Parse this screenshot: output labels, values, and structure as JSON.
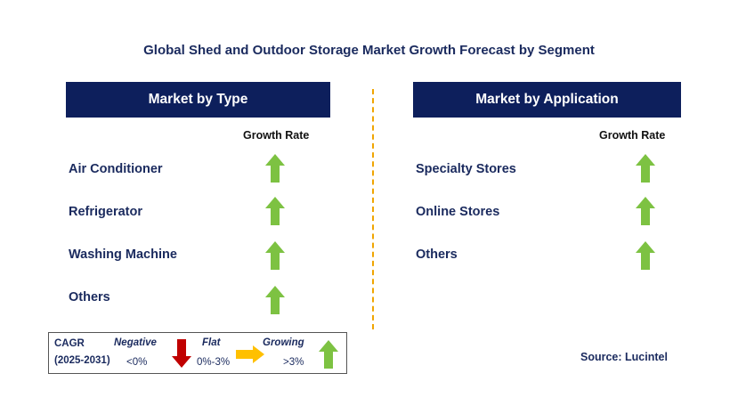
{
  "title": "Global Shed and Outdoor Storage Market Growth Forecast by Segment",
  "colors": {
    "header_bg": "#0d1f5c",
    "up_arrow": "#7dc242",
    "down_arrow": "#c00000",
    "flat_arrow": "#ffc000",
    "divider": "#f0a500"
  },
  "left_panel": {
    "header": "Market by Type",
    "column_header": "Growth Rate",
    "rows": [
      {
        "label": "Air Conditioner",
        "trend": "growing"
      },
      {
        "label": "Refrigerator",
        "trend": "growing"
      },
      {
        "label": "Washing Machine",
        "trend": "growing"
      },
      {
        "label": "Others",
        "trend": "growing"
      }
    ]
  },
  "right_panel": {
    "header": "Market by Application",
    "column_header": "Growth Rate",
    "rows": [
      {
        "label": "Specialty Stores",
        "trend": "growing"
      },
      {
        "label": "Online Stores",
        "trend": "growing"
      },
      {
        "label": "Others",
        "trend": "growing"
      }
    ]
  },
  "legend": {
    "cagr_label": "CAGR",
    "period": "(2025-2031)",
    "negative_label": "Negative",
    "negative_range": "<0%",
    "flat_label": "Flat",
    "flat_range": "0%-3%",
    "growing_label": "Growing",
    "growing_range": ">3%"
  },
  "source": "Source: Lucintel"
}
